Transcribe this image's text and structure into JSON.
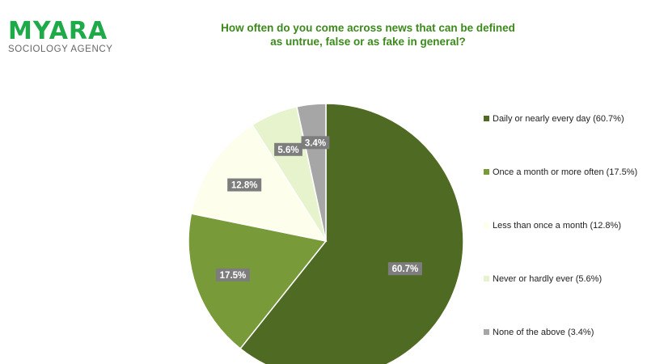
{
  "branding": {
    "name": "MYARA",
    "tagline": "SOCIOLOGY AGENCY",
    "name_color": "#1faa4a",
    "tagline_color": "#666666"
  },
  "chart_data": {
    "type": "pie",
    "title_lines": [
      "How often do you come across news that can be defined",
      "as untrue, false or as fake in general?"
    ],
    "title_color": "#3c8a1c",
    "categories": [
      "Daily or nearly every day",
      "Once a month or more often",
      "Less than once a month",
      "Never or hardly ever",
      "None of the above"
    ],
    "values": [
      60.7,
      17.5,
      12.8,
      5.6,
      3.4
    ],
    "data_labels": [
      "60.7%",
      "17.5%",
      "12.8%",
      "5.6%",
      "3.4%"
    ],
    "legend_labels": [
      "Daily or nearly every day (60.7%)",
      "Once a month or more often (17.5%)",
      "Less than once a month (12.8%)",
      "Never or hardly ever (5.6%)",
      "None of the above (3.4%)"
    ],
    "colors": [
      "#4f6a22",
      "#789a38",
      "#fdfeeb",
      "#e6f3cd",
      "#a6a6a6"
    ],
    "label_box_color": "#7d7d7d",
    "legend_position": "right",
    "start_angle_deg": 0,
    "direction": "clockwise"
  }
}
